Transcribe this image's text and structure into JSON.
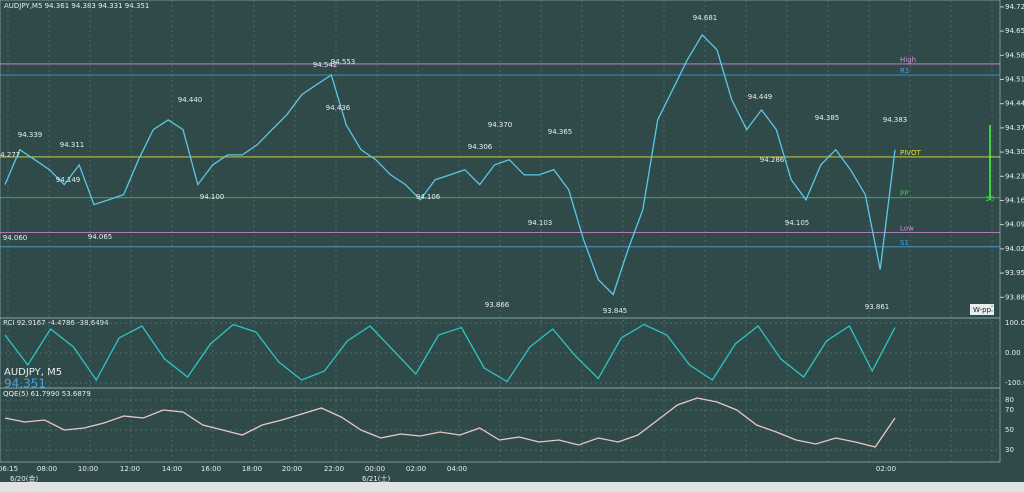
{
  "chart_data": {
    "type": "line",
    "title": "AUDJPY,M5  94.361 94.383 94.331 94.351",
    "symbol_overlay": "AUDJPY, M5",
    "price_overlay": "94.351",
    "ylim": [
      93.82,
      94.74
    ],
    "yticks": [
      {
        "value": 94.72,
        "label": "94.720"
      },
      {
        "value": 94.65,
        "label": "94.650"
      },
      {
        "value": 94.58,
        "label": "94.580"
      },
      {
        "value": 94.51,
        "label": "94.510"
      },
      {
        "value": 94.44,
        "label": "94.440"
      },
      {
        "value": 94.37,
        "label": "94.370"
      },
      {
        "value": 94.3,
        "label": "94.300"
      },
      {
        "value": 94.23,
        "label": "94.230"
      },
      {
        "value": 94.16,
        "label": "94.160"
      },
      {
        "value": 94.09,
        "label": "94.090"
      },
      {
        "value": 94.02,
        "label": "94.020"
      },
      {
        "value": 93.95,
        "label": "93.950"
      },
      {
        "value": 93.88,
        "label": "93.880"
      }
    ],
    "series": [
      {
        "color": "#5bc8e8",
        "values": [
          94.206,
          94.307,
          94.278,
          94.249,
          94.206,
          94.263,
          94.148,
          94.162,
          94.177,
          94.278,
          94.365,
          94.393,
          94.365,
          94.206,
          94.263,
          94.292,
          94.292,
          94.321,
          94.365,
          94.408,
          94.466,
          94.495,
          94.523,
          94.379,
          94.307,
          94.278,
          94.234,
          94.206,
          94.162,
          94.22,
          94.234,
          94.249,
          94.206,
          94.263,
          94.278,
          94.234,
          94.234,
          94.249,
          94.191,
          94.047,
          93.931,
          93.888,
          94.018,
          94.133,
          94.393,
          94.48,
          94.567,
          94.639,
          94.596,
          94.451,
          94.365,
          94.422,
          94.365,
          94.22,
          94.162,
          94.263,
          94.307,
          94.249,
          94.177,
          93.96,
          94.307
        ]
      }
    ],
    "levels": [
      {
        "name": "High",
        "value": 94.555,
        "color": "#d98ad9"
      },
      {
        "name": "R1",
        "value": 94.523,
        "color": "#4aa3e0"
      },
      {
        "name": "PIVOT",
        "value": 94.286,
        "color": "#e0e040"
      },
      {
        "name": "PP",
        "value": 94.168,
        "color": "#40d040"
      },
      {
        "name": "Low",
        "value": 94.067,
        "color": "#d98ad9"
      },
      {
        "name": "S1",
        "value": 94.026,
        "color": "#4aa3e0"
      }
    ],
    "annotations": [
      "94.681",
      "94.553",
      "94.542",
      "94.440",
      "94.436",
      "94.339",
      "94.311",
      "94.277",
      "94.370",
      "94.306",
      "94.365",
      "94.449",
      "94.385",
      "94.383",
      "94.286",
      "94.149",
      "94.060",
      "94.065",
      "94.100",
      "94.106",
      "94.103",
      "94.105",
      "93.866",
      "93.845",
      "93.861"
    ],
    "time_labels": [
      "06:15",
      "08:00",
      "10:00",
      "12:00",
      "14:00",
      "16:00",
      "18:00",
      "20:00",
      "22:00",
      "00:00",
      "02:00",
      "04:00",
      "02:00"
    ],
    "date_labels": [
      "6/20(金)",
      "6/21(土)"
    ],
    "pivot_box_label": "W-pp",
    "side_label": "20",
    "rci": {
      "title": "RCI 92.9167 -4.4786 -38.6494",
      "ylim": [
        -110,
        110
      ],
      "yticks": [
        {
          "value": 100,
          "label": "100.0000"
        },
        {
          "value": 0,
          "label": "0.00"
        },
        {
          "value": -100,
          "label": "-100.0000"
        }
      ],
      "color": "#2ec4c4",
      "values": [
        60,
        -40,
        80,
        20,
        -90,
        50,
        90,
        -20,
        -80,
        30,
        95,
        70,
        -30,
        -90,
        -60,
        40,
        90,
        10,
        -70,
        60,
        85,
        -50,
        -95,
        20,
        80,
        -10,
        -85,
        50,
        95,
        60,
        -40,
        -90,
        30,
        90,
        -20,
        -80,
        40,
        90,
        -60,
        85
      ]
    },
    "qqe": {
      "title": "QQE(5) 61.7990 53.6879",
      "ylim": [
        20,
        90
      ],
      "yticks": [
        80,
        70,
        50,
        30
      ],
      "color": "#e8c8c8",
      "values": [
        62,
        58,
        60,
        50,
        52,
        57,
        64,
        62,
        70,
        68,
        55,
        50,
        45,
        55,
        60,
        66,
        72,
        63,
        50,
        42,
        46,
        44,
        48,
        45,
        52,
        40,
        43,
        38,
        40,
        35,
        42,
        38,
        45,
        60,
        75,
        82,
        78,
        70,
        55,
        48,
        40,
        36,
        42,
        38,
        33,
        62
      ]
    }
  }
}
